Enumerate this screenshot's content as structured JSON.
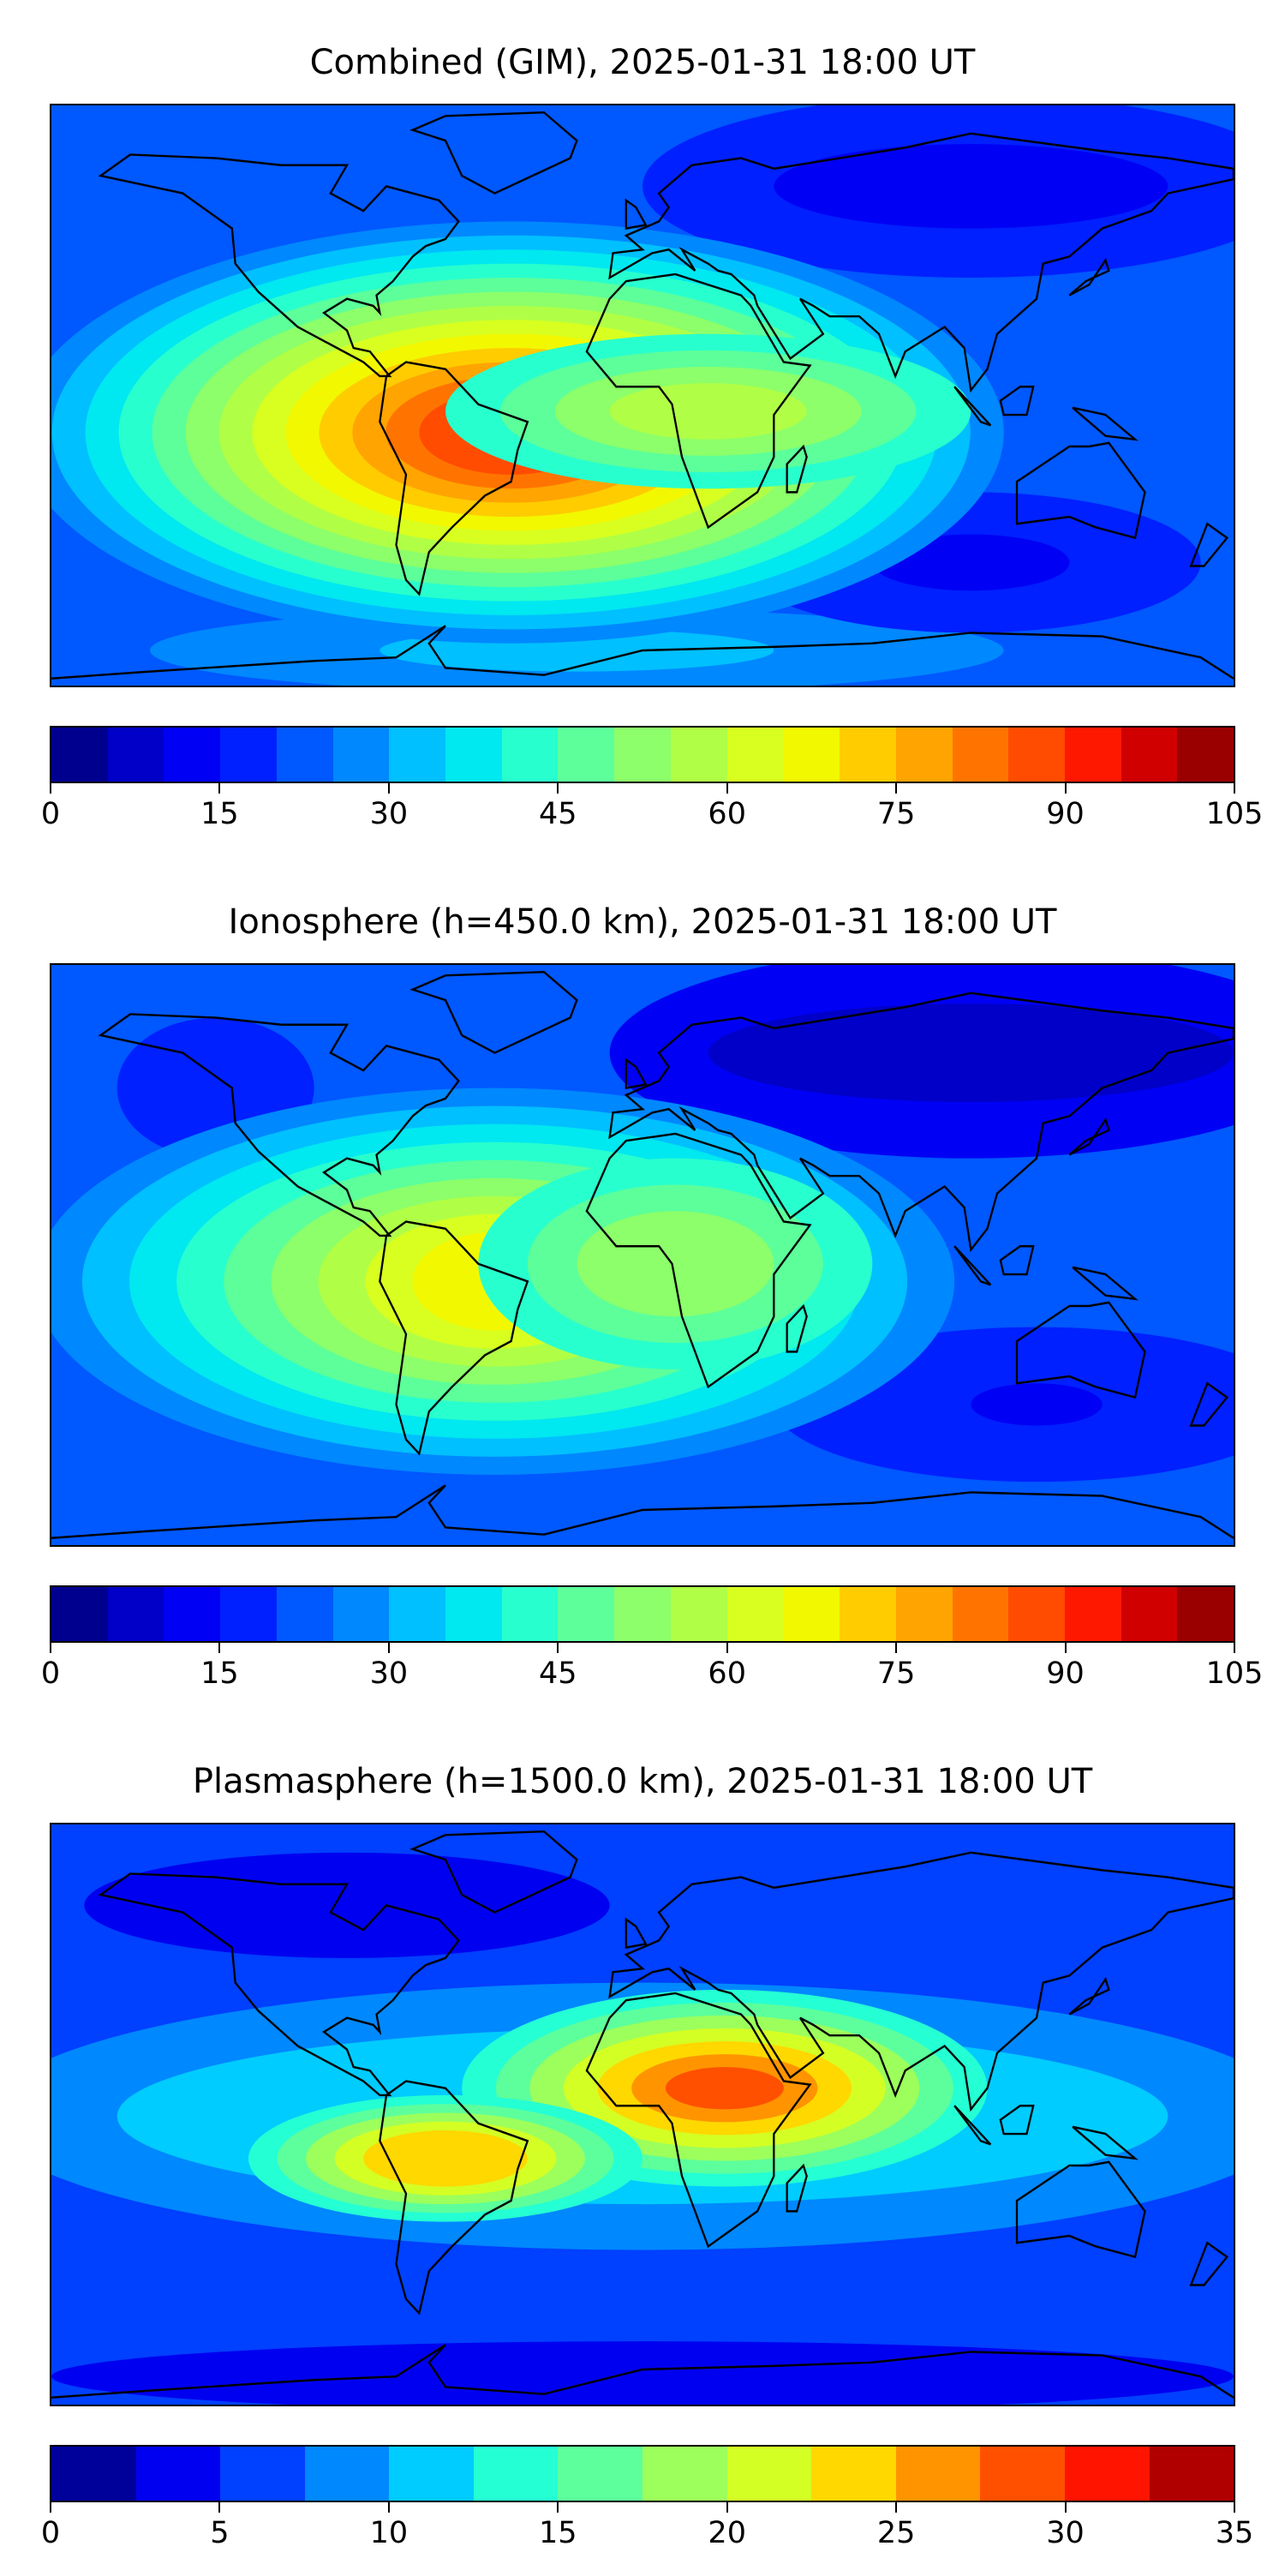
{
  "chart_data": [
    {
      "type": "heatmap",
      "title": "Combined (GIM), 2025-01-31 18:00 UT",
      "ticks": [
        "0",
        "15",
        "30",
        "45",
        "60",
        "75",
        "90",
        "105"
      ],
      "range": [
        0,
        105
      ],
      "levels_step": 5,
      "colors": [
        "#00008f",
        "#0000c8",
        "#0000f5",
        "#0020ff",
        "#0058ff",
        "#0088ff",
        "#00c0ff",
        "#00e8f0",
        "#28ffce",
        "#5cff9a",
        "#8cff6a",
        "#b0ff46",
        "#d8ff20",
        "#f2f800",
        "#ffcc00",
        "#ffa400",
        "#ff7400",
        "#ff4c00",
        "#ff1800",
        "#d00000",
        "#9a0000"
      ],
      "max_region": "South America, ~85-90"
    },
    {
      "type": "heatmap",
      "title": "Ionosphere  (h=450.0 km), 2025-01-31 18:00 UT",
      "ticks": [
        "0",
        "15",
        "30",
        "45",
        "60",
        "75",
        "90",
        "105"
      ],
      "range": [
        0,
        105
      ],
      "levels_step": 5,
      "colors": [
        "#00008f",
        "#0000c8",
        "#0000f5",
        "#0020ff",
        "#0058ff",
        "#0088ff",
        "#00c0ff",
        "#00e8f0",
        "#28ffce",
        "#5cff9a",
        "#8cff6a",
        "#b0ff46",
        "#d8ff20",
        "#f2f800",
        "#ffcc00",
        "#ffa400",
        "#ff7400",
        "#ff4c00",
        "#ff1800",
        "#d00000",
        "#9a0000"
      ],
      "max_region": "South America, ~65-75"
    },
    {
      "type": "heatmap",
      "title": "Plasmasphere (h=1500.0 km), 2025-01-31 18:00 UT",
      "ticks": [
        "0",
        "5",
        "10",
        "15",
        "20",
        "25",
        "30",
        "35"
      ],
      "range": [
        0,
        35
      ],
      "levels_step": 2.5,
      "colors": [
        "#00009a",
        "#0000f0",
        "#0040ff",
        "#0088ff",
        "#00ccff",
        "#24ffd4",
        "#5cff9c",
        "#9cff5c",
        "#d4ff24",
        "#ffd800",
        "#ff9400",
        "#ff5000",
        "#ff1400",
        "#b00000"
      ],
      "max_region": "North Africa, ~25-27.5"
    }
  ]
}
